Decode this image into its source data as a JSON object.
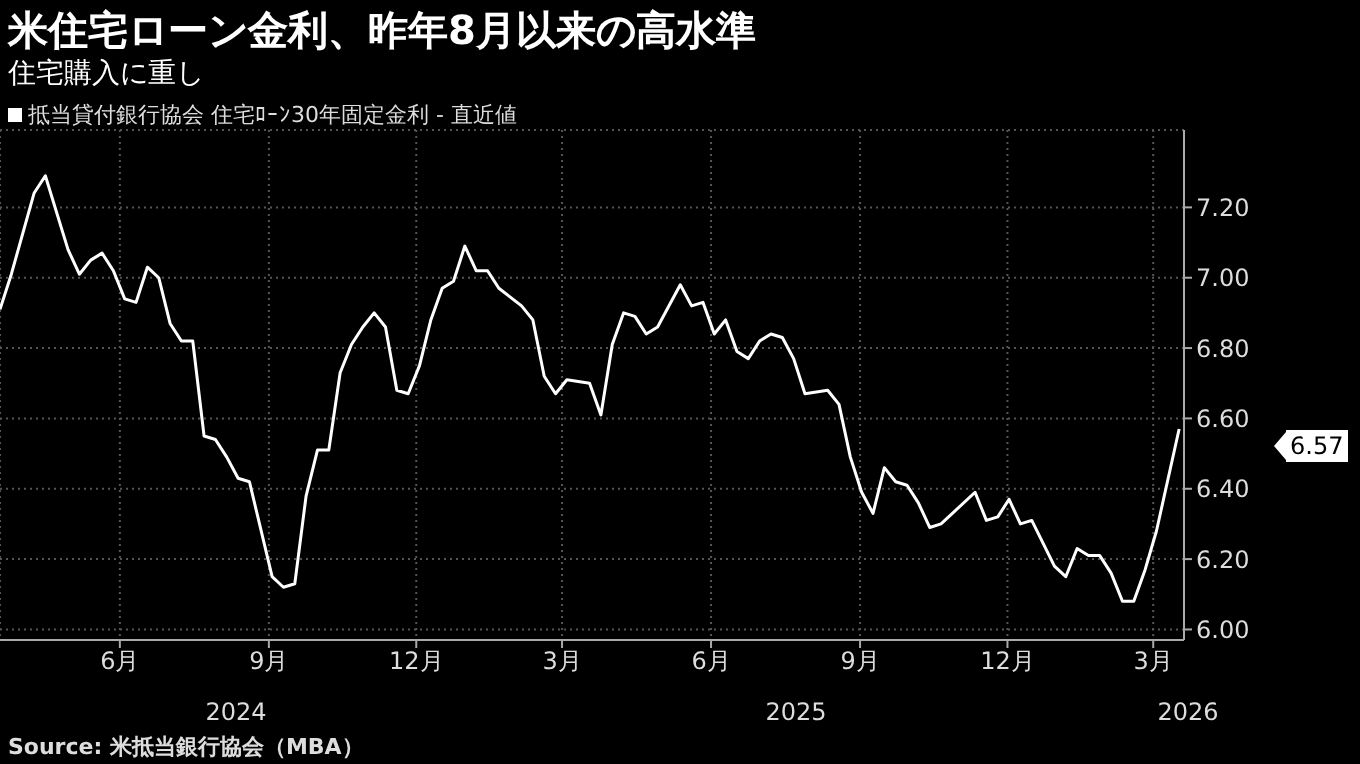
{
  "chart_data": {
    "type": "line",
    "title": "米住宅ローン金利、昨年8月以来の高水準",
    "subtitle": "住宅購入に重し",
    "legend": "top left",
    "grid": true,
    "marker": "none",
    "line_style": "solid",
    "x": [
      "2024-04-03",
      "2024-04-10",
      "2024-04-24",
      "2024-05-01",
      "2024-05-15",
      "2024-05-22",
      "2024-05-29",
      "2024-06-05",
      "2024-06-12",
      "2024-06-19",
      "2024-06-26",
      "2024-07-03",
      "2024-07-10",
      "2024-07-17",
      "2024-07-24",
      "2024-07-31",
      "2024-08-07",
      "2024-08-14",
      "2024-08-21",
      "2024-08-28",
      "2024-09-04",
      "2024-09-18",
      "2024-09-25",
      "2024-10-02",
      "2024-10-09",
      "2024-10-16",
      "2024-10-23",
      "2024-10-30",
      "2024-11-06",
      "2024-11-13",
      "2024-11-20",
      "2024-11-27",
      "2024-12-04",
      "2024-12-11",
      "2024-12-18",
      "2024-12-25",
      "2025-01-01",
      "2025-01-08",
      "2025-01-15",
      "2025-01-22",
      "2025-01-29",
      "2025-02-05",
      "2025-02-19",
      "2025-02-26",
      "2025-03-05",
      "2025-03-12",
      "2025-03-19",
      "2025-04-02",
      "2025-04-09",
      "2025-04-16",
      "2025-04-23",
      "2025-04-30",
      "2025-05-07",
      "2025-05-14",
      "2025-05-28",
      "2025-06-04",
      "2025-06-11",
      "2025-06-18",
      "2025-06-25",
      "2025-07-02",
      "2025-07-09",
      "2025-07-16",
      "2025-07-23",
      "2025-07-30",
      "2025-08-06",
      "2025-08-13",
      "2025-08-27",
      "2025-09-03",
      "2025-09-10",
      "2025-09-17",
      "2025-09-24",
      "2025-10-01",
      "2025-10-08",
      "2025-10-15",
      "2025-10-22",
      "2025-10-29",
      "2025-11-05",
      "2025-11-26",
      "2025-12-03",
      "2025-12-10",
      "2025-12-17",
      "2025-12-24",
      "2025-12-31",
      "2026-01-14",
      "2026-01-21",
      "2026-01-28",
      "2026-02-04",
      "2026-02-11",
      "2026-02-18",
      "2026-02-25",
      "2026-03-04",
      "2026-03-11",
      "2026-03-18",
      "2026-04-01"
    ],
    "series": [
      {
        "name": "抵当貸付銀行協会 住宅ﾛｰﾝ30年固定金利 - 直近値",
        "color": "#ffffff",
        "values": [
          6.91,
          7.01,
          7.24,
          7.29,
          7.08,
          7.01,
          7.05,
          7.07,
          7.02,
          6.94,
          6.93,
          7.03,
          7.0,
          6.87,
          6.82,
          6.82,
          6.55,
          6.54,
          6.49,
          6.43,
          6.42,
          6.15,
          6.12,
          6.13,
          6.38,
          6.51,
          6.51,
          6.73,
          6.81,
          6.86,
          6.9,
          6.86,
          6.68,
          6.67,
          6.75,
          6.88,
          6.97,
          6.99,
          7.09,
          7.02,
          7.02,
          6.97,
          6.92,
          6.88,
          6.72,
          6.67,
          6.71,
          6.7,
          6.61,
          6.81,
          6.9,
          6.89,
          6.84,
          6.86,
          6.98,
          6.92,
          6.93,
          6.84,
          6.88,
          6.79,
          6.77,
          6.82,
          6.84,
          6.83,
          6.77,
          6.67,
          6.68,
          6.64,
          6.49,
          6.39,
          6.33,
          6.46,
          6.42,
          6.41,
          6.36,
          6.29,
          6.3,
          6.39,
          6.31,
          6.32,
          6.37,
          6.3,
          6.31,
          6.18,
          6.15,
          6.23,
          6.21,
          6.21,
          6.16,
          6.08,
          6.08,
          6.17,
          6.28,
          6.57
        ]
      }
    ],
    "xlim": [
      "2024-04-03",
      "2026-04-04"
    ],
    "xticks": [
      {
        "value": "2024-06-16",
        "label": "6月"
      },
      {
        "value": "2024-09-16",
        "label": "9月"
      },
      {
        "value": "2024-12-16",
        "label": "12月"
      },
      {
        "value": "2025-03-16",
        "label": "3月"
      },
      {
        "value": "2025-06-16",
        "label": "6月"
      },
      {
        "value": "2025-09-16",
        "label": "9月"
      },
      {
        "value": "2025-12-16",
        "label": "12月"
      },
      {
        "value": "2026-03-16",
        "label": "3月"
      }
    ],
    "ylim": [
      5.97,
      7.42
    ],
    "yticks": [
      {
        "value": 6.0,
        "label": "6.00"
      },
      {
        "value": 6.2,
        "label": "6.20"
      },
      {
        "value": 6.4,
        "label": "6.40"
      },
      {
        "value": 6.6,
        "label": "6.60"
      },
      {
        "value": 6.8,
        "label": "6.80"
      },
      {
        "value": 7.0,
        "label": "7.00"
      },
      {
        "value": 7.2,
        "label": "7.20"
      }
    ],
    "annotations": [
      "2024",
      "2025",
      "2026",
      "6.57",
      "Source: 米抵当銀行協会（MBA）"
    ]
  }
}
